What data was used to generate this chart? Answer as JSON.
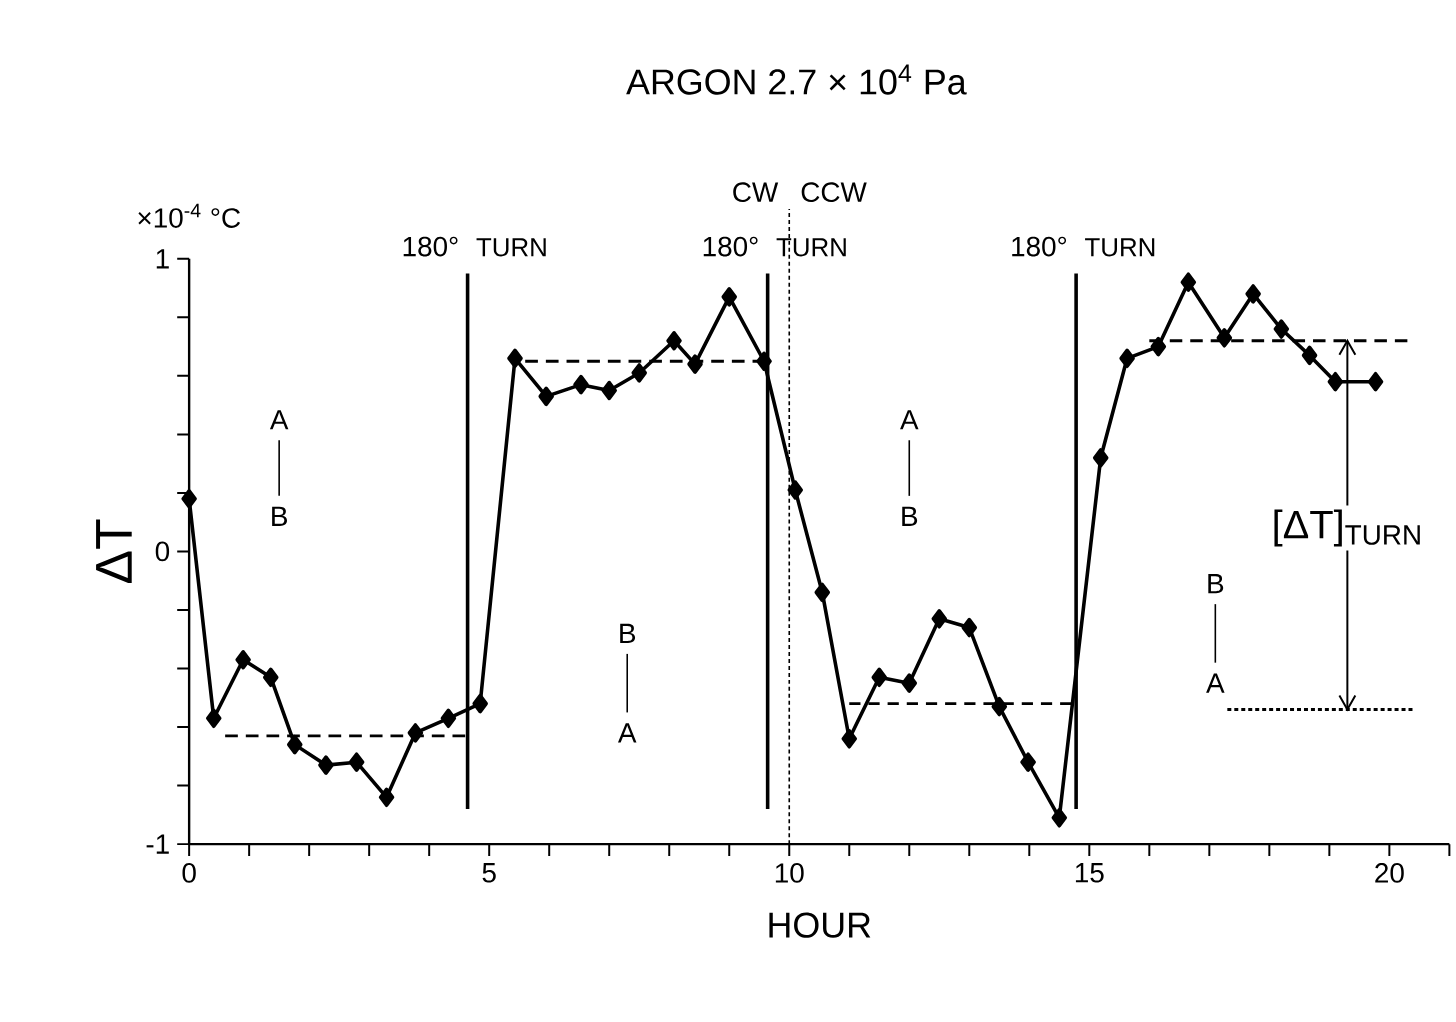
{
  "chart_data": {
    "type": "line",
    "title": "ARGON    2.7 × 10$^{4}$ Pa",
    "xlabel": "HOUR",
    "ylabel": "ΔT",
    "xlim": [
      0,
      21
    ],
    "xticks": [
      0,
      {
        "value": 1,
        "label": null
      },
      {
        "value": 2,
        "label": null
      },
      {
        "value": 3,
        "label": null
      },
      {
        "value": 4,
        "label": null
      },
      5,
      {
        "value": 6,
        "label": null
      },
      {
        "value": 7,
        "label": null
      },
      {
        "value": 8,
        "label": null
      },
      {
        "value": 9,
        "label": null
      },
      10,
      {
        "value": 11,
        "label": null
      },
      {
        "value": 12,
        "label": null
      },
      {
        "value": 13,
        "label": null
      },
      {
        "value": 14,
        "label": null
      },
      15,
      {
        "value": 16,
        "label": null
      },
      {
        "value": 17,
        "label": null
      },
      {
        "value": 18,
        "label": null
      },
      {
        "value": 19,
        "label": null
      },
      20,
      {
        "value": 21,
        "label": null
      }
    ],
    "ylim": [
      -1,
      1
    ],
    "yticks": [
      -1,
      {
        "value": -0.8,
        "label": null
      },
      {
        "value": -0.6,
        "label": null
      },
      {
        "value": -0.4,
        "label": null
      },
      {
        "value": -0.2,
        "label": null
      },
      0,
      {
        "value": 0.2,
        "label": null
      },
      {
        "value": 0.4,
        "label": null
      },
      {
        "value": 0.6,
        "label": null
      },
      {
        "value": 0.8,
        "label": null
      },
      1
    ],
    "series": [
      {
        "color": "#000000",
        "marker": "diamond",
        "line_style": "solid",
        "x": [
          0,
          0.41,
          0.9,
          1.36,
          1.76,
          2.28,
          2.79,
          3.29,
          3.77,
          4.32,
          4.85,
          5.43,
          5.95,
          6.53,
          7.0,
          7.5,
          8.08,
          8.43,
          9.0,
          9.58,
          10.1,
          10.55,
          11.0,
          11.5,
          12.0,
          12.5,
          13.0,
          13.5,
          13.98,
          14.5,
          15.19,
          15.63,
          16.15,
          16.65,
          17.25,
          17.73,
          18.2,
          18.67,
          19.1,
          19.77
        ],
        "values": [
          0.18,
          -0.57,
          -0.37,
          -0.43,
          -0.66,
          -0.73,
          -0.72,
          -0.84,
          -0.62,
          -0.57,
          -0.52,
          0.66,
          0.53,
          0.57,
          0.55,
          0.61,
          0.72,
          0.64,
          0.87,
          0.65,
          0.21,
          -0.14,
          -0.64,
          -0.43,
          -0.45,
          -0.23,
          -0.26,
          -0.53,
          -0.72,
          -0.91,
          0.32,
          0.66,
          0.7,
          0.92,
          0.73,
          0.88,
          0.76,
          0.67,
          0.58,
          0.58
        ]
      },
      {
        "color": "#000000",
        "marker": "none",
        "line_style": "dashed",
        "x": [
          0.6,
          4.6
        ],
        "values": [
          -0.63,
          -0.63
        ]
      },
      {
        "color": "#000000",
        "marker": "none",
        "line_style": "dashed",
        "x": [
          5.6,
          9.6
        ],
        "values": [
          0.65,
          0.65
        ]
      },
      {
        "color": "#000000",
        "marker": "none",
        "line_style": "dashed",
        "x": [
          11.0,
          14.7
        ],
        "values": [
          -0.52,
          -0.52
        ]
      },
      {
        "color": "#000000",
        "marker": "none",
        "line_style": "dashed",
        "x": [
          16.0,
          20.3
        ],
        "values": [
          0.72,
          0.72
        ]
      },
      {
        "color": "#000000",
        "marker": "none",
        "line_style": "dotted",
        "x": [
          17.3,
          20.4
        ],
        "values": [
          -0.54,
          -0.54
        ]
      },
      {
        "color": "#000000",
        "marker": "none",
        "line_style": "solid",
        "x": [
          19.3,
          19.3
        ],
        "values": [
          0.72,
          -0.54
        ]
      }
    ],
    "ref_lines": [
      {
        "axis": "x",
        "value": 4.64,
        "label": "TURN",
        "line_style": "solid"
      },
      {
        "axis": "x",
        "value": 9.64,
        "label": "TURN",
        "line_style": "solid"
      },
      {
        "axis": "x",
        "value": 14.78,
        "label": "TURN",
        "line_style": "solid"
      },
      {
        "axis": "x",
        "value": 10,
        "line_style": "dotted"
      }
    ],
    "annotations": [
      "×10$^{-4}$ °C",
      "180°",
      "180°",
      "180°",
      "CW",
      "CCW",
      "A",
      "B",
      "B",
      "A",
      "A",
      "B",
      "B",
      "A",
      "[ΔT]$_{TURN}$"
    ]
  }
}
